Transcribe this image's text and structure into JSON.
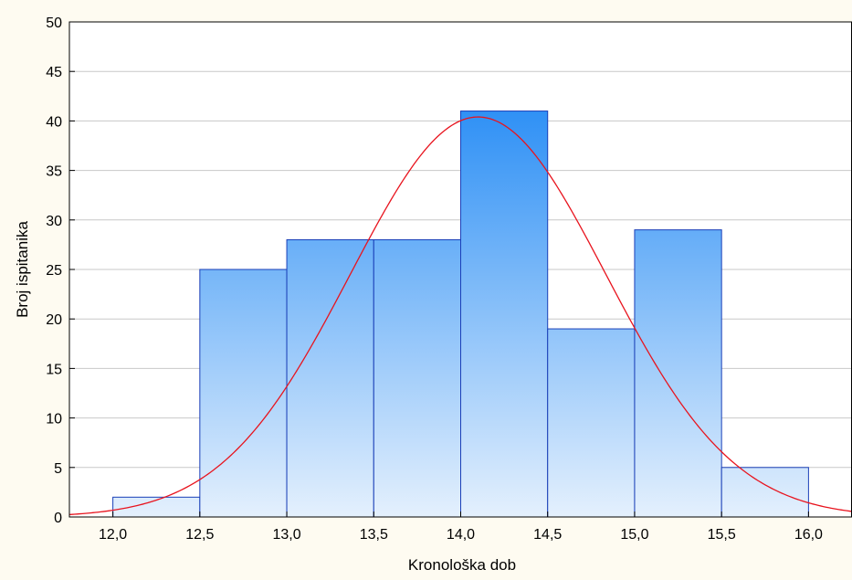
{
  "chart_data": {
    "type": "bar",
    "subtype": "histogram",
    "xlabel": "Kronološka dob",
    "ylabel": "Broj ispitanika",
    "xlim": [
      11.75,
      16.25
    ],
    "ylim": [
      0,
      50
    ],
    "x_ticks": [
      "12,0",
      "12,5",
      "13,0",
      "13,5",
      "14,0",
      "14,5",
      "15,0",
      "15,5",
      "16,0"
    ],
    "x_tick_values": [
      12.0,
      12.5,
      13.0,
      13.5,
      14.0,
      14.5,
      15.0,
      15.5,
      16.0
    ],
    "y_ticks": [
      "0",
      "5",
      "10",
      "15",
      "20",
      "25",
      "30",
      "35",
      "40",
      "45",
      "50"
    ],
    "y_tick_values": [
      0,
      5,
      10,
      15,
      20,
      25,
      30,
      35,
      40,
      45,
      50
    ],
    "bins": [
      {
        "start": 12.0,
        "end": 12.5,
        "count": 2
      },
      {
        "start": 12.5,
        "end": 13.0,
        "count": 25
      },
      {
        "start": 13.0,
        "end": 13.5,
        "count": 28
      },
      {
        "start": 13.5,
        "end": 14.0,
        "count": 28
      },
      {
        "start": 14.0,
        "end": 14.5,
        "count": 41
      },
      {
        "start": 14.5,
        "end": 15.0,
        "count": 19
      },
      {
        "start": 15.0,
        "end": 15.5,
        "count": 29
      },
      {
        "start": 15.5,
        "end": 16.0,
        "count": 5
      }
    ],
    "normal_curve": {
      "mean": 14.1,
      "peak": 40.4,
      "sd": 0.735
    },
    "grid": {
      "horizontal": true,
      "vertical": false
    },
    "colors": {
      "bar_top": "#2c8ff5",
      "bar_bottom": "#e4f0fd",
      "bar_edge": "#1a3fb8",
      "curve": "#e8141e",
      "grid": "#c8c8c8",
      "plot_bg": "#ffffff",
      "page_bg": "#fefbf1"
    }
  }
}
